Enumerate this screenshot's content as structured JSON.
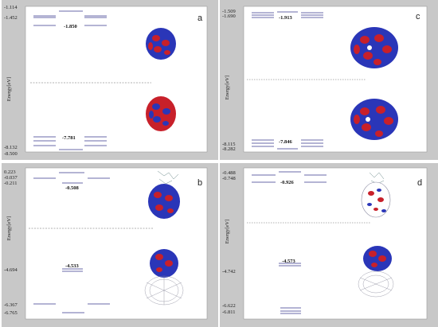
{
  "ylabel": "Energy[eV]",
  "panels": [
    {
      "id": "a",
      "tag": "a",
      "ticks": [
        "-1.114",
        "-1.452",
        "-8.132",
        "-8.500"
      ],
      "homo_label": "-7.781",
      "lumo_label": "-1.850"
    },
    {
      "id": "c",
      "tag": "c",
      "ticks": [
        "-1.509",
        "-1.690",
        "-8.115",
        "-8.282"
      ],
      "homo_label": "-7.846",
      "lumo_label": "-1.913"
    },
    {
      "id": "b",
      "tag": "b",
      "ticks": [
        "0.223",
        "-0.037",
        "-0.211",
        "-4.694",
        "-6.367",
        "-6.765"
      ],
      "homo_label": "-4.533",
      "lumo_label": "-0.508"
    },
    {
      "id": "d",
      "tag": "d",
      "ticks": [
        "-0.488",
        "-0.748",
        "-4.742",
        "-6.622",
        "-6.811"
      ],
      "homo_label": "-4.573",
      "lumo_label": "-0.926"
    }
  ],
  "colors": {
    "panel_bg": "#c8c8c8",
    "plot_bg": "#ffffff",
    "level_line": "#6a6aa8",
    "dashed_line": "#999999",
    "orbital_red": "#c8202a",
    "orbital_blue": "#2a36b8"
  }
}
